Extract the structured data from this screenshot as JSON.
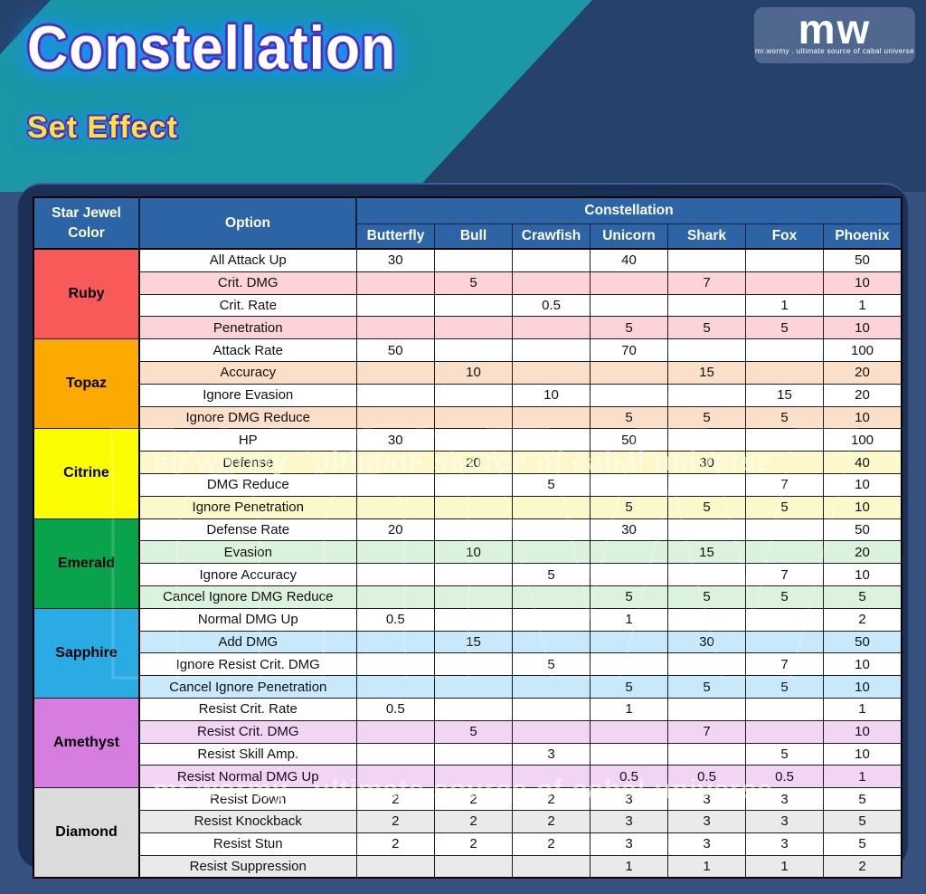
{
  "header": {
    "title": "Constellation",
    "subtitle": "Set Effect",
    "logo": {
      "text": "mw",
      "tagline": "mr.wormy . ultimate source of cabal universe"
    }
  },
  "watermark": "mr.wormy . ultimate source of cabal universe",
  "colors": {
    "teal_banner": "#1b97a6",
    "navy_banner": "#26426b",
    "background": "#37517e",
    "panel": "#1b3054",
    "table_header_blue": "#2d64a6"
  },
  "table": {
    "col1_header": "Star Jewel Color",
    "col2_header": "Option",
    "group_header": "Constellation",
    "constellations": [
      "Butterfly",
      "Bull",
      "Crawfish",
      "Unicorn",
      "Shark",
      "Fox",
      "Phoenix"
    ],
    "groups": [
      {
        "jewel": "Ruby",
        "color": "#f85a5a",
        "tint": "#fcd3d6",
        "rows": [
          {
            "option": "All Attack Up",
            "values": [
              "30",
              "",
              "",
              "40",
              "",
              "",
              "50"
            ]
          },
          {
            "option": "Crit. DMG",
            "values": [
              "",
              "5",
              "",
              "",
              "7",
              "",
              "10"
            ]
          },
          {
            "option": "Crit. Rate",
            "values": [
              "",
              "",
              "0.5",
              "",
              "",
              "1",
              "1"
            ]
          },
          {
            "option": "Penetration",
            "values": [
              "",
              "",
              "",
              "5",
              "5",
              "5",
              "10"
            ]
          }
        ]
      },
      {
        "jewel": "Topaz",
        "color": "#fca902",
        "tint": "#fbdfc8",
        "rows": [
          {
            "option": "Attack Rate",
            "values": [
              "50",
              "",
              "",
              "70",
              "",
              "",
              "100"
            ]
          },
          {
            "option": "Accuracy",
            "values": [
              "",
              "10",
              "",
              "",
              "15",
              "",
              "20"
            ]
          },
          {
            "option": "Ignore Evasion",
            "values": [
              "",
              "",
              "10",
              "",
              "",
              "15",
              "20"
            ]
          },
          {
            "option": "Ignore DMG Reduce",
            "values": [
              "",
              "",
              "",
              "5",
              "5",
              "5",
              "10"
            ]
          }
        ]
      },
      {
        "jewel": "Citrine",
        "color": "#fcfc03",
        "tint": "#fbf9c9",
        "rows": [
          {
            "option": "HP",
            "values": [
              "30",
              "",
              "",
              "50",
              "",
              "",
              "100"
            ]
          },
          {
            "option": "Defense",
            "values": [
              "",
              "20",
              "",
              "",
              "30",
              "",
              "40"
            ]
          },
          {
            "option": "DMG Reduce",
            "values": [
              "",
              "",
              "5",
              "",
              "",
              "7",
              "10"
            ]
          },
          {
            "option": "Ignore Penetration",
            "values": [
              "",
              "",
              "",
              "5",
              "5",
              "5",
              "10"
            ]
          }
        ]
      },
      {
        "jewel": "Emerald",
        "color": "#09a34e",
        "tint": "#dbf2dc",
        "rows": [
          {
            "option": "Defense Rate",
            "values": [
              "20",
              "",
              "",
              "30",
              "",
              "",
              "50"
            ]
          },
          {
            "option": "Evasion",
            "values": [
              "",
              "10",
              "",
              "",
              "15",
              "",
              "20"
            ]
          },
          {
            "option": "Ignore Accuracy",
            "values": [
              "",
              "",
              "5",
              "",
              "",
              "7",
              "10"
            ]
          },
          {
            "option": "Cancel Ignore DMG Reduce",
            "values": [
              "",
              "",
              "",
              "5",
              "5",
              "5",
              "5"
            ]
          }
        ]
      },
      {
        "jewel": "Sapphire",
        "color": "#2aabe4",
        "tint": "#c7e9fb",
        "rows": [
          {
            "option": "Normal DMG Up",
            "values": [
              "0.5",
              "",
              "",
              "1",
              "",
              "",
              "2"
            ]
          },
          {
            "option": "Add DMG",
            "values": [
              "",
              "15",
              "",
              "",
              "30",
              "",
              "50"
            ]
          },
          {
            "option": "Ignore Resist Crit. DMG",
            "values": [
              "",
              "",
              "5",
              "",
              "",
              "7",
              "10"
            ]
          },
          {
            "option": "Cancel Ignore Penetration",
            "values": [
              "",
              "",
              "",
              "5",
              "5",
              "5",
              "10"
            ]
          }
        ]
      },
      {
        "jewel": "Amethyst",
        "color": "#d67ddf",
        "tint": "#f2d4f5",
        "rows": [
          {
            "option": "Resist Crit. Rate",
            "values": [
              "0.5",
              "",
              "",
              "1",
              "",
              "",
              "1"
            ]
          },
          {
            "option": "Resist Crit. DMG",
            "values": [
              "",
              "5",
              "",
              "",
              "7",
              "",
              "10"
            ]
          },
          {
            "option": "Resist Skill Amp.",
            "values": [
              "",
              "",
              "3",
              "",
              "",
              "5",
              "10"
            ]
          },
          {
            "option": "Resist Normal DMG Up",
            "values": [
              "",
              "",
              "",
              "0.5",
              "0.5",
              "0.5",
              "1"
            ]
          }
        ]
      },
      {
        "jewel": "Diamond",
        "color": "#dbdbdb",
        "tint": "#eaeaea",
        "rows": [
          {
            "option": "Resist Down",
            "values": [
              "2",
              "2",
              "2",
              "3",
              "3",
              "3",
              "5"
            ]
          },
          {
            "option": "Resist Knockback",
            "values": [
              "2",
              "2",
              "2",
              "3",
              "3",
              "3",
              "5"
            ]
          },
          {
            "option": "Resist Stun",
            "values": [
              "2",
              "2",
              "2",
              "3",
              "3",
              "3",
              "5"
            ]
          },
          {
            "option": "Resist Suppression",
            "values": [
              "",
              "",
              "",
              "1",
              "1",
              "1",
              "2"
            ]
          }
        ]
      }
    ]
  }
}
